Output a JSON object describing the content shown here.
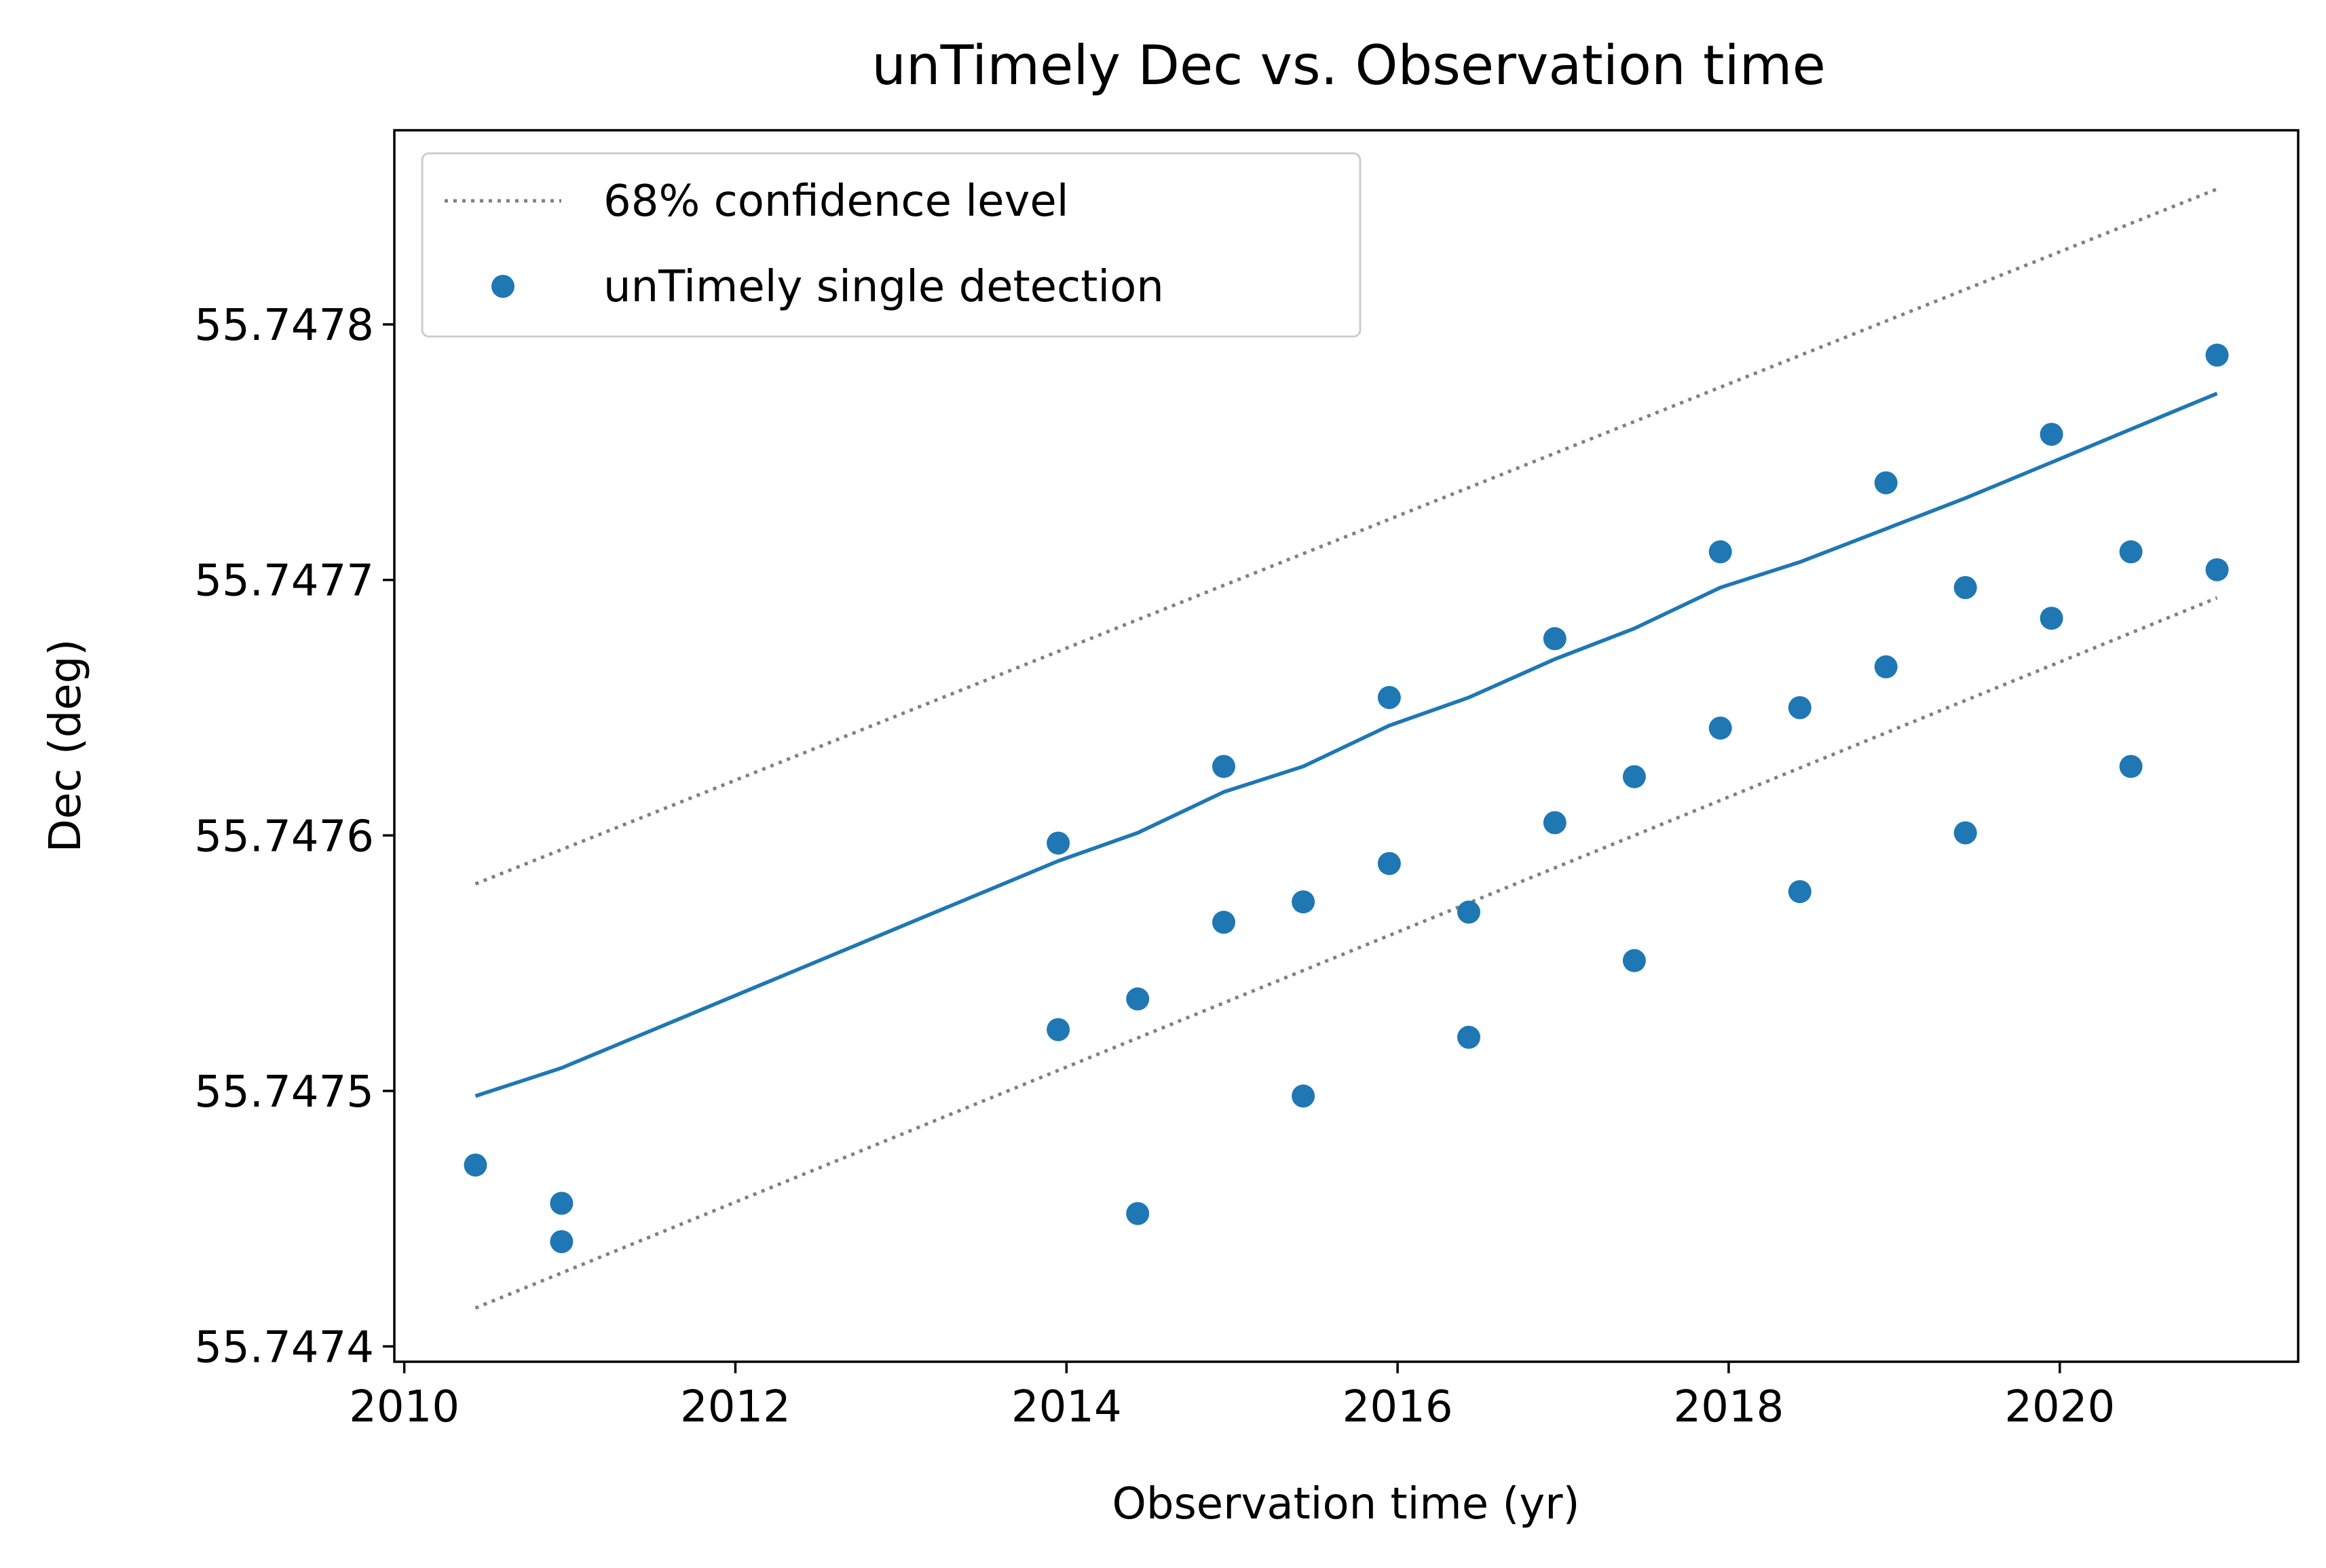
{
  "chart_data": {
    "type": "scatter",
    "title": "unTimely Dec vs. Observation time",
    "xlabel": "Observation time (yr)",
    "ylabel": "Dec (deg)",
    "xlim": [
      2009.94,
      2021.44
    ],
    "ylim": [
      55.747394,
      55.747876
    ],
    "xticks": [
      2010,
      2012,
      2014,
      2016,
      2018,
      2020
    ],
    "xtick_labels": [
      "2010",
      "2012",
      "2014",
      "2016",
      "2018",
      "2020"
    ],
    "yticks": [
      55.7474,
      55.7475,
      55.7476,
      55.7477,
      55.7478
    ],
    "ytick_labels": [
      "55.7474",
      "55.7475",
      "55.7476",
      "55.7477",
      "55.7478"
    ],
    "grid": false,
    "legend_position": "upper-left",
    "legend": [
      "68% confidence level",
      "unTimely single detection"
    ],
    "colors": {
      "fit": "#1f77b4",
      "points": "#1f77b4",
      "confidence": "#808080"
    },
    "fit_line": {
      "x": [
        2010.43,
        2010.95,
        2013.95,
        2014.43,
        2014.95,
        2015.43,
        2015.95,
        2016.43,
        2016.95,
        2017.43,
        2017.95,
        2018.43,
        2018.95,
        2019.43,
        2019.95,
        2020.43,
        2020.95
      ],
      "y": [
        55.747498,
        55.747509,
        55.74759,
        55.747601,
        55.747617,
        55.747627,
        55.747643,
        55.747654,
        55.747669,
        55.747681,
        55.747697,
        55.747707,
        55.74772,
        55.747732,
        55.747746,
        55.747759,
        55.747773
      ]
    },
    "confidence_upper": {
      "x": [
        2010.43,
        2020.95
      ],
      "y": [
        55.747581,
        55.747853
      ]
    },
    "confidence_lower": {
      "x": [
        2010.43,
        2020.95
      ],
      "y": [
        55.747415,
        55.747693
      ]
    },
    "series": [
      {
        "name": "unTimely single detection",
        "x": [
          2010.43,
          2010.95,
          2010.95,
          2013.95,
          2013.95,
          2014.43,
          2014.43,
          2014.95,
          2014.95,
          2015.43,
          2015.43,
          2015.95,
          2015.95,
          2016.43,
          2016.43,
          2016.95,
          2016.95,
          2017.43,
          2017.43,
          2017.95,
          2017.95,
          2018.43,
          2018.43,
          2018.95,
          2018.95,
          2019.43,
          2019.43,
          2019.95,
          2019.95,
          2020.43,
          2020.43,
          2020.95,
          2020.95
        ],
        "y": [
          55.747471,
          55.747456,
          55.747441,
          55.747597,
          55.747524,
          55.747536,
          55.747452,
          55.747627,
          55.747566,
          55.747574,
          55.747498,
          55.747654,
          55.747589,
          55.74757,
          55.747521,
          55.747677,
          55.747605,
          55.747623,
          55.747551,
          55.747711,
          55.747642,
          55.74765,
          55.747578,
          55.747738,
          55.747666,
          55.747697,
          55.747601,
          55.747757,
          55.747685,
          55.747711,
          55.747627,
          55.747788,
          55.747704
        ]
      }
    ]
  }
}
